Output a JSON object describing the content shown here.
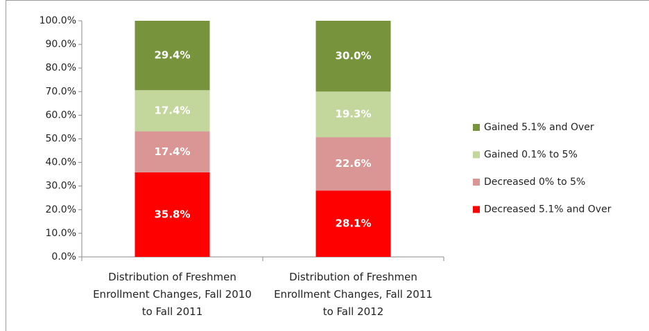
{
  "chart_data": {
    "type": "stacked_bar",
    "categories": [
      "Distribution of Freshmen Enrollment Changes, Fall 2010 to Fall 2011",
      "Distribution of Freshmen Enrollment Changes, Fall 2011 to Fall 2012"
    ],
    "series": [
      {
        "name": "Decreased 5.1% and Over",
        "color": "#ff0000",
        "values": [
          35.8,
          28.1
        ],
        "value_labels": [
          "35.8%",
          "28.1%"
        ]
      },
      {
        "name": "Decreased 0% to 5%",
        "color": "#d99694",
        "values": [
          17.4,
          22.6
        ],
        "value_labels": [
          "17.4%",
          "22.6%"
        ]
      },
      {
        "name": "Gained 0.1% to 5%",
        "color": "#c3d69b",
        "values": [
          17.4,
          19.3
        ],
        "value_labels": [
          "17.4%",
          "19.3%"
        ]
      },
      {
        "name": "Gained 5.1% and Over",
        "color": "#77933c",
        "values": [
          29.4,
          30.0
        ],
        "value_labels": [
          "29.4%",
          "30.0%"
        ]
      }
    ],
    "ylim": [
      0,
      100
    ],
    "yticks": [
      {
        "value": 0,
        "label": "0.0%"
      },
      {
        "value": 10,
        "label": "10.0%"
      },
      {
        "value": 20,
        "label": "20.0%"
      },
      {
        "value": 30,
        "label": "30.0%"
      },
      {
        "value": 40,
        "label": "40.0%"
      },
      {
        "value": 50,
        "label": "50.0%"
      },
      {
        "value": 60,
        "label": "60.0%"
      },
      {
        "value": 70,
        "label": "70.0%"
      },
      {
        "value": 80,
        "label": "80.0%"
      },
      {
        "value": 90,
        "label": "90.0%"
      },
      {
        "value": 100,
        "label": "100.0%"
      }
    ],
    "legend": "right"
  }
}
